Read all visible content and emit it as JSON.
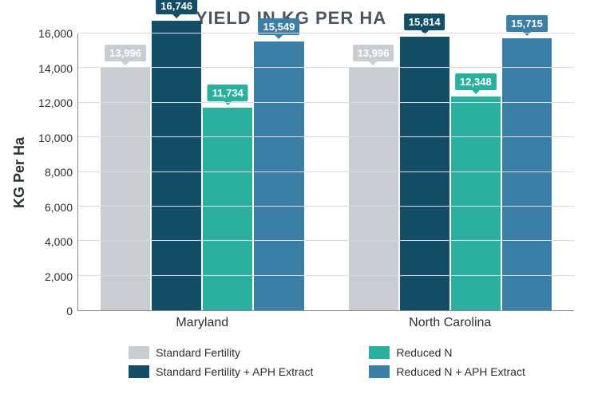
{
  "chart": {
    "type": "bar",
    "title": "YIELD IN KG PER HA",
    "title_fontsize": 22,
    "title_color": "#4a5560",
    "ylabel": "KG Per Ha",
    "ylabel_fontsize": 18,
    "ylim_min": 0,
    "ylim_max": 16000,
    "ytick_step": 2000,
    "yticks": [
      "0",
      "2,000",
      "4,000",
      "6,000",
      "8,000",
      "10,000",
      "12,000",
      "14,000",
      "16,000"
    ],
    "grid_color": "#d9dcdf",
    "axis_color": "#888888",
    "background_color": "#ffffff",
    "categories": [
      "Maryland",
      "North Carolina"
    ],
    "series": [
      {
        "name": "Standard Fertility",
        "color": "#c9cdd1"
      },
      {
        "name": "Standard Fertility + APH Extract",
        "color": "#134e66"
      },
      {
        "name": "Reduced N",
        "color": "#2bb0a0"
      },
      {
        "name": "Reduced N + APH Extract",
        "color": "#3b7ea6"
      }
    ],
    "data": [
      {
        "category": "Maryland",
        "values": [
          13996,
          16746,
          11734,
          15549
        ],
        "labels": [
          "13,996",
          "16,746",
          "11,734",
          "15,549"
        ]
      },
      {
        "category": "North Carolina",
        "values": [
          13996,
          15814,
          12348,
          15715
        ],
        "labels": [
          "13,996",
          "15,814",
          "12,348",
          "15,715"
        ]
      }
    ],
    "bar_width_ratio": 0.92,
    "label_fontsize": 13
  }
}
